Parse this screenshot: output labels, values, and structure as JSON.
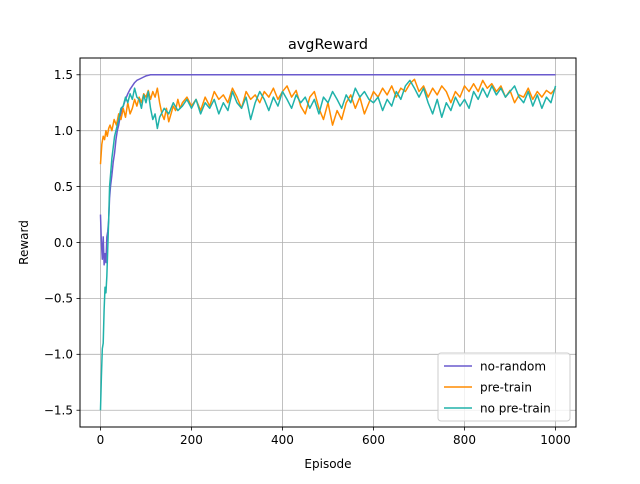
{
  "chart_data": {
    "type": "line",
    "title": "avgReward",
    "xlabel": "Episode",
    "ylabel": "Reward",
    "xlim": [
      -45,
      1045
    ],
    "ylim": [
      -1.65,
      1.65
    ],
    "xticks": [
      0,
      200,
      400,
      600,
      800,
      1000
    ],
    "yticks": [
      -1.5,
      -1.0,
      -0.5,
      0.0,
      0.5,
      1.0,
      1.5
    ],
    "xtick_labels": [
      "0",
      "200",
      "400",
      "600",
      "800",
      "1000"
    ],
    "ytick_labels": [
      "−1.5",
      "−1.0",
      "−0.5",
      "0.0",
      "0.5",
      "1.0",
      "1.5"
    ],
    "grid": true,
    "legend_position": "lower-right",
    "series": [
      {
        "name": "no-random",
        "color": "#6a5acd",
        "points": [
          [
            0,
            0.25
          ],
          [
            2,
            0.0
          ],
          [
            4,
            -0.15
          ],
          [
            6,
            0.05
          ],
          [
            8,
            -0.2
          ],
          [
            10,
            -0.1
          ],
          [
            12,
            -0.18
          ],
          [
            14,
            0.05
          ],
          [
            16,
            0.1
          ],
          [
            18,
            0.2
          ],
          [
            20,
            0.4
          ],
          [
            22,
            0.5
          ],
          [
            25,
            0.6
          ],
          [
            28,
            0.72
          ],
          [
            31,
            0.8
          ],
          [
            34,
            0.92
          ],
          [
            37,
            1.0
          ],
          [
            40,
            1.05
          ],
          [
            43,
            1.12
          ],
          [
            46,
            1.18
          ],
          [
            50,
            1.22
          ],
          [
            55,
            1.28
          ],
          [
            60,
            1.33
          ],
          [
            65,
            1.37
          ],
          [
            70,
            1.4
          ],
          [
            75,
            1.43
          ],
          [
            80,
            1.45
          ],
          [
            85,
            1.46
          ],
          [
            90,
            1.47
          ],
          [
            95,
            1.48
          ],
          [
            100,
            1.49
          ],
          [
            110,
            1.5
          ],
          [
            130,
            1.5
          ],
          [
            200,
            1.5
          ],
          [
            400,
            1.5
          ],
          [
            600,
            1.5
          ],
          [
            800,
            1.5
          ],
          [
            1000,
            1.5
          ]
        ]
      },
      {
        "name": "pre-train",
        "color": "#ff8c00",
        "points": [
          [
            0,
            0.7
          ],
          [
            3,
            0.88
          ],
          [
            6,
            0.95
          ],
          [
            9,
            0.92
          ],
          [
            12,
            1.0
          ],
          [
            15,
            0.95
          ],
          [
            18,
            1.02
          ],
          [
            21,
            1.05
          ],
          [
            25,
            1.0
          ],
          [
            30,
            1.1
          ],
          [
            35,
            1.05
          ],
          [
            40,
            1.15
          ],
          [
            45,
            1.1
          ],
          [
            50,
            1.2
          ],
          [
            55,
            1.12
          ],
          [
            60,
            1.25
          ],
          [
            65,
            1.15
          ],
          [
            70,
            1.2
          ],
          [
            75,
            1.28
          ],
          [
            80,
            1.22
          ],
          [
            85,
            1.3
          ],
          [
            90,
            1.25
          ],
          [
            95,
            1.33
          ],
          [
            100,
            1.3
          ],
          [
            105,
            1.36
          ],
          [
            110,
            1.28
          ],
          [
            115,
            1.35
          ],
          [
            120,
            1.3
          ],
          [
            125,
            1.38
          ],
          [
            130,
            1.25
          ],
          [
            135,
            1.15
          ],
          [
            140,
            1.1
          ],
          [
            145,
            1.2
          ],
          [
            150,
            1.08
          ],
          [
            155,
            1.15
          ],
          [
            160,
            1.22
          ],
          [
            165,
            1.18
          ],
          [
            170,
            1.28
          ],
          [
            175,
            1.2
          ],
          [
            180,
            1.25
          ],
          [
            190,
            1.3
          ],
          [
            200,
            1.22
          ],
          [
            210,
            1.28
          ],
          [
            220,
            1.18
          ],
          [
            230,
            1.3
          ],
          [
            240,
            1.22
          ],
          [
            250,
            1.35
          ],
          [
            260,
            1.28
          ],
          [
            270,
            1.32
          ],
          [
            280,
            1.25
          ],
          [
            290,
            1.38
          ],
          [
            300,
            1.3
          ],
          [
            310,
            1.2
          ],
          [
            320,
            1.35
          ],
          [
            330,
            1.28
          ],
          [
            340,
            1.32
          ],
          [
            350,
            1.25
          ],
          [
            360,
            1.35
          ],
          [
            370,
            1.3
          ],
          [
            380,
            1.38
          ],
          [
            390,
            1.28
          ],
          [
            400,
            1.35
          ],
          [
            410,
            1.4
          ],
          [
            420,
            1.3
          ],
          [
            430,
            1.36
          ],
          [
            440,
            1.22
          ],
          [
            450,
            1.15
          ],
          [
            460,
            1.3
          ],
          [
            470,
            1.35
          ],
          [
            480,
            1.2
          ],
          [
            490,
            1.1
          ],
          [
            500,
            1.25
          ],
          [
            510,
            1.05
          ],
          [
            520,
            1.18
          ],
          [
            530,
            1.1
          ],
          [
            540,
            1.25
          ],
          [
            550,
            1.32
          ],
          [
            560,
            1.2
          ],
          [
            570,
            1.3
          ],
          [
            580,
            1.15
          ],
          [
            590,
            1.25
          ],
          [
            600,
            1.35
          ],
          [
            610,
            1.3
          ],
          [
            620,
            1.38
          ],
          [
            630,
            1.32
          ],
          [
            640,
            1.4
          ],
          [
            650,
            1.3
          ],
          [
            660,
            1.38
          ],
          [
            670,
            1.35
          ],
          [
            680,
            1.42
          ],
          [
            690,
            1.46
          ],
          [
            700,
            1.35
          ],
          [
            710,
            1.4
          ],
          [
            720,
            1.3
          ],
          [
            730,
            1.38
          ],
          [
            740,
            1.32
          ],
          [
            750,
            1.4
          ],
          [
            760,
            1.35
          ],
          [
            770,
            1.25
          ],
          [
            780,
            1.35
          ],
          [
            790,
            1.3
          ],
          [
            800,
            1.4
          ],
          [
            810,
            1.35
          ],
          [
            820,
            1.42
          ],
          [
            830,
            1.35
          ],
          [
            840,
            1.45
          ],
          [
            850,
            1.38
          ],
          [
            860,
            1.42
          ],
          [
            870,
            1.35
          ],
          [
            880,
            1.4
          ],
          [
            890,
            1.3
          ],
          [
            900,
            1.36
          ],
          [
            910,
            1.25
          ],
          [
            920,
            1.32
          ],
          [
            930,
            1.3
          ],
          [
            940,
            1.38
          ],
          [
            950,
            1.28
          ],
          [
            960,
            1.35
          ],
          [
            970,
            1.3
          ],
          [
            980,
            1.36
          ],
          [
            990,
            1.33
          ],
          [
            1000,
            1.38
          ]
        ]
      },
      {
        "name": "no pre-train",
        "color": "#20b2aa",
        "points": [
          [
            0,
            -1.5
          ],
          [
            2,
            -1.2
          ],
          [
            4,
            -0.95
          ],
          [
            6,
            -0.9
          ],
          [
            8,
            -0.6
          ],
          [
            10,
            -0.4
          ],
          [
            12,
            -0.45
          ],
          [
            14,
            -0.3
          ],
          [
            16,
            -0.05
          ],
          [
            18,
            0.2
          ],
          [
            20,
            0.5
          ],
          [
            22,
            0.6
          ],
          [
            25,
            0.75
          ],
          [
            28,
            0.85
          ],
          [
            31,
            0.95
          ],
          [
            34,
            1.0
          ],
          [
            37,
            1.05
          ],
          [
            40,
            1.1
          ],
          [
            45,
            1.2
          ],
          [
            50,
            1.22
          ],
          [
            55,
            1.3
          ],
          [
            60,
            1.25
          ],
          [
            65,
            1.33
          ],
          [
            70,
            1.28
          ],
          [
            75,
            1.38
          ],
          [
            80,
            1.3
          ],
          [
            85,
            1.28
          ],
          [
            90,
            1.2
          ],
          [
            95,
            1.32
          ],
          [
            100,
            1.25
          ],
          [
            105,
            1.35
          ],
          [
            110,
            1.2
          ],
          [
            115,
            1.1
          ],
          [
            120,
            1.15
          ],
          [
            125,
            1.02
          ],
          [
            130,
            1.12
          ],
          [
            140,
            1.2
          ],
          [
            150,
            1.15
          ],
          [
            160,
            1.25
          ],
          [
            170,
            1.18
          ],
          [
            180,
            1.22
          ],
          [
            190,
            1.28
          ],
          [
            200,
            1.2
          ],
          [
            210,
            1.28
          ],
          [
            220,
            1.15
          ],
          [
            230,
            1.25
          ],
          [
            240,
            1.2
          ],
          [
            250,
            1.28
          ],
          [
            260,
            1.15
          ],
          [
            270,
            1.25
          ],
          [
            280,
            1.18
          ],
          [
            290,
            1.35
          ],
          [
            300,
            1.25
          ],
          [
            310,
            1.2
          ],
          [
            320,
            1.3
          ],
          [
            330,
            1.1
          ],
          [
            340,
            1.25
          ],
          [
            350,
            1.35
          ],
          [
            360,
            1.28
          ],
          [
            370,
            1.18
          ],
          [
            380,
            1.3
          ],
          [
            390,
            1.22
          ],
          [
            400,
            1.35
          ],
          [
            410,
            1.28
          ],
          [
            420,
            1.2
          ],
          [
            430,
            1.32
          ],
          [
            440,
            1.25
          ],
          [
            450,
            1.3
          ],
          [
            460,
            1.2
          ],
          [
            470,
            1.28
          ],
          [
            480,
            1.15
          ],
          [
            490,
            1.3
          ],
          [
            500,
            1.25
          ],
          [
            510,
            1.35
          ],
          [
            520,
            1.28
          ],
          [
            530,
            1.2
          ],
          [
            540,
            1.32
          ],
          [
            550,
            1.25
          ],
          [
            560,
            1.38
          ],
          [
            570,
            1.3
          ],
          [
            580,
            1.35
          ],
          [
            590,
            1.28
          ],
          [
            600,
            1.25
          ],
          [
            610,
            1.3
          ],
          [
            620,
            1.18
          ],
          [
            630,
            1.28
          ],
          [
            640,
            1.22
          ],
          [
            650,
            1.35
          ],
          [
            660,
            1.28
          ],
          [
            670,
            1.4
          ],
          [
            680,
            1.45
          ],
          [
            690,
            1.38
          ],
          [
            700,
            1.3
          ],
          [
            710,
            1.38
          ],
          [
            720,
            1.25
          ],
          [
            730,
            1.15
          ],
          [
            740,
            1.28
          ],
          [
            750,
            1.12
          ],
          [
            760,
            1.25
          ],
          [
            770,
            1.18
          ],
          [
            780,
            1.3
          ],
          [
            790,
            1.22
          ],
          [
            800,
            1.28
          ],
          [
            810,
            1.2
          ],
          [
            820,
            1.35
          ],
          [
            830,
            1.28
          ],
          [
            840,
            1.38
          ],
          [
            850,
            1.3
          ],
          [
            860,
            1.4
          ],
          [
            870,
            1.32
          ],
          [
            880,
            1.38
          ],
          [
            890,
            1.3
          ],
          [
            900,
            1.35
          ],
          [
            910,
            1.4
          ],
          [
            920,
            1.3
          ],
          [
            930,
            1.25
          ],
          [
            940,
            1.35
          ],
          [
            950,
            1.22
          ],
          [
            960,
            1.32
          ],
          [
            970,
            1.2
          ],
          [
            980,
            1.3
          ],
          [
            990,
            1.25
          ],
          [
            1000,
            1.4
          ]
        ]
      }
    ]
  }
}
